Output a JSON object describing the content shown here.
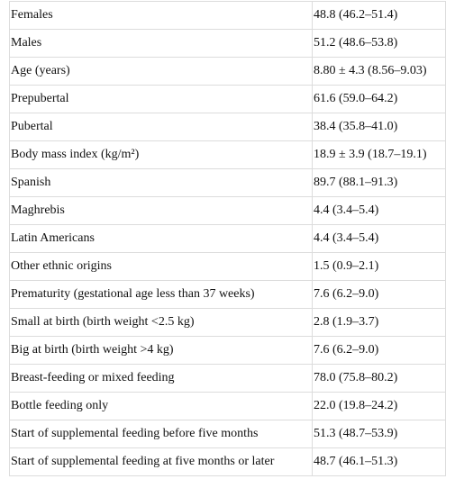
{
  "table": {
    "rows": [
      [
        "Females",
        "48.8 (46.2–51.4)"
      ],
      [
        "Males",
        "51.2 (48.6–53.8)"
      ],
      [
        "Age (years)",
        "8.80 ± 4.3 (8.56–9.03)"
      ],
      [
        "Prepubertal",
        "61.6 (59.0–64.2)"
      ],
      [
        "Pubertal",
        "38.4 (35.8–41.0)"
      ],
      [
        "Body mass index (kg/m²)",
        "18.9 ± 3.9 (18.7–19.1)"
      ],
      [
        "Spanish",
        "89.7 (88.1–91.3)"
      ],
      [
        "Maghrebis",
        "4.4 (3.4–5.4)"
      ],
      [
        "Latin Americans",
        "4.4 (3.4–5.4)"
      ],
      [
        "Other ethnic origins",
        "1.5 (0.9–2.1)"
      ],
      [
        "Prematurity (gestational age less than 37 weeks)",
        "7.6 (6.2–9.0)"
      ],
      [
        "Small at birth (birth weight <2.5 kg)",
        "2.8 (1.9–3.7)"
      ],
      [
        "Big at birth (birth weight >4 kg)",
        "7.6 (6.2–9.0)"
      ],
      [
        "Breast-feeding or mixed feeding",
        "78.0 (75.8–80.2)"
      ],
      [
        "Bottle feeding only",
        "22.0 (19.8–24.2)"
      ],
      [
        "Start of supplemental feeding before five months",
        "51.3 (48.7–53.9)"
      ],
      [
        "Start of supplemental feeding at five months or later",
        "48.7 (46.1–51.3)"
      ]
    ]
  }
}
